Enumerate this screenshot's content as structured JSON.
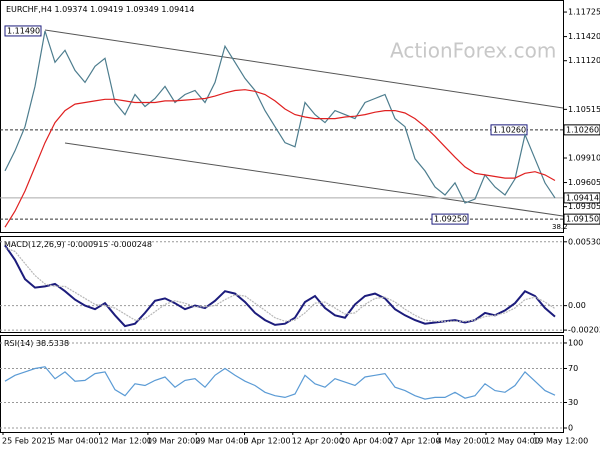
{
  "chart_data": [
    {
      "type": "line",
      "symbol": "EURCHF,H4",
      "last_bar": {
        "open": 1.09374,
        "high": 1.09419,
        "low": 1.09349
      },
      "watermark": "ActionForex.com",
      "ylim": [
        1.0899,
        1.1185
      ],
      "yticks": [
        {
          "value": 1.11725,
          "label": "1.11725"
        },
        {
          "value": 1.1142,
          "label": "1.11420"
        },
        {
          "value": 1.1112,
          "label": "1.11120"
        },
        {
          "value": 1.10515,
          "label": "1.10515"
        },
        {
          "value": 1.0991,
          "label": "1.09910"
        },
        {
          "value": 1.09605,
          "label": "1.09605"
        },
        {
          "value": 1.09305,
          "label": "1.09305"
        }
      ],
      "levels": [
        {
          "value": 1.1026,
          "label": "1.10260"
        },
        {
          "value": 1.0915,
          "label": "1.09150"
        }
      ],
      "annotations": [
        {
          "value": 1.1149,
          "label": "1.11490"
        },
        {
          "value": 1.1026,
          "label": "1.10260"
        },
        {
          "value": 1.0925,
          "label": "1.09250"
        }
      ],
      "fib_label": "38.2",
      "grid": false,
      "series": [
        {
          "color": "#4d7d8e",
          "values": [
            1.0975,
            1.1,
            1.103,
            1.108,
            1.1149,
            1.111,
            1.1125,
            1.11,
            1.1085,
            1.1105,
            1.1115,
            1.106,
            1.1045,
            1.107,
            1.1055,
            1.1065,
            1.108,
            1.106,
            1.107,
            1.1075,
            1.106,
            1.1085,
            1.113,
            1.111,
            1.109,
            1.1075,
            1.105,
            1.103,
            1.101,
            1.1005,
            1.106,
            1.1045,
            1.1035,
            1.105,
            1.1045,
            1.104,
            1.106,
            1.1065,
            1.107,
            1.104,
            1.103,
            1.099,
            1.0975,
            1.0955,
            1.0945,
            1.096,
            1.0935,
            1.094,
            1.097,
            1.0955,
            1.0945,
            1.0965,
            1.102,
            1.099,
            1.096,
            1.09414
          ]
        },
        {
          "color": "#e02020",
          "values": [
            1.0905,
            1.0925,
            1.095,
            1.098,
            1.101,
            1.1035,
            1.105,
            1.1058,
            1.106,
            1.1062,
            1.1064,
            1.1064,
            1.1062,
            1.106,
            1.106,
            1.106,
            1.1062,
            1.1062,
            1.1063,
            1.1064,
            1.1065,
            1.1068,
            1.1072,
            1.1075,
            1.1076,
            1.1074,
            1.107,
            1.1062,
            1.1052,
            1.1045,
            1.1042,
            1.104,
            1.104,
            1.104,
            1.1042,
            1.1043,
            1.1045,
            1.1048,
            1.105,
            1.105,
            1.1047,
            1.104,
            1.103,
            1.1018,
            1.1005,
            1.0992,
            1.098,
            1.0972,
            1.097,
            1.0968,
            1.0966,
            1.0966,
            1.0972,
            1.0974,
            1.097,
            1.0963
          ]
        }
      ]
    },
    {
      "type": "line",
      "title": "MACD(12,26,9)",
      "ylim": [
        -0.00219,
        0.0057
      ],
      "yticks": [
        0.005301,
        {
          "value": 0,
          "label": "0.00"
        },
        -0.002031
      ],
      "grid": true,
      "series": [
        {
          "color": "#1c1c7c",
          "values": [
            0.005,
            0.0038,
            0.0022,
            0.0015,
            0.0016,
            0.0018,
            0.0012,
            0.0005,
            0.0,
            -0.0003,
            0.0002,
            -0.0008,
            -0.0017,
            -0.0015,
            -0.0006,
            0.0004,
            0.0006,
            0.0002,
            -0.0003,
            0.0,
            -0.0002,
            0.0004,
            0.0012,
            0.001,
            0.0003,
            -0.0006,
            -0.0012,
            -0.0016,
            -0.0015,
            -0.001,
            0.0003,
            0.0008,
            -0.0002,
            -0.0008,
            -0.001,
            0.0001,
            0.0008,
            0.001,
            0.0006,
            -0.0003,
            -0.0008,
            -0.0012,
            -0.0015,
            -0.0014,
            -0.0013,
            -0.0012,
            -0.0014,
            -0.0012,
            -0.0006,
            -0.0008,
            -0.0004,
            0.0002,
            0.0012,
            0.0008,
            -0.0002,
            -0.000915
          ]
        },
        {
          "color": "#b8b8b8",
          "values": [
            0.0048,
            0.0045,
            0.0035,
            0.0025,
            0.0018,
            0.0016,
            0.0016,
            0.0011,
            0.0006,
            0.0001,
            0.0,
            -0.0002,
            -0.0007,
            -0.0012,
            -0.0011,
            -0.0005,
            0.0001,
            0.0004,
            0.0002,
            -0.0001,
            -0.0001,
            0.0,
            0.0005,
            0.0009,
            0.0008,
            0.0002,
            -0.0004,
            -0.001,
            -0.0013,
            -0.0012,
            -0.0006,
            0.0002,
            0.0003,
            -0.0002,
            -0.0007,
            -0.0006,
            0.0001,
            0.0006,
            0.0007,
            0.0003,
            -0.0003,
            -0.0008,
            -0.0012,
            -0.0013,
            -0.0013,
            -0.0013,
            -0.0013,
            -0.0012,
            -0.0009,
            -0.0008,
            -0.0006,
            -0.0002,
            0.0005,
            0.0007,
            0.0003,
            -0.000248
          ]
        }
      ]
    },
    {
      "type": "line",
      "title": "RSI(14)",
      "ylim": [
        -4.7,
        108.2
      ],
      "yticks": [
        100,
        70,
        30,
        0
      ],
      "grid": true,
      "xtick_labels": [
        "25 Feb 2021",
        "5 Mar 04:00",
        "12 Mar 12:00",
        "19 Mar 20:00",
        "29 Mar 04:00",
        "5 Apr 12:00",
        "12 Apr 20:00",
        "20 Apr 04:00",
        "27 Apr 12:00",
        "4 May 20:00",
        "12 May 04:00",
        "19 May 12:00"
      ],
      "series": [
        {
          "color": "#5b9bd5",
          "values": [
            55,
            62,
            66,
            70,
            72,
            58,
            66,
            55,
            56,
            64,
            66,
            45,
            38,
            52,
            50,
            56,
            60,
            48,
            56,
            58,
            48,
            62,
            70,
            62,
            55,
            50,
            42,
            38,
            36,
            40,
            62,
            52,
            48,
            58,
            54,
            50,
            60,
            62,
            64,
            48,
            44,
            38,
            34,
            36,
            36,
            42,
            35,
            38,
            52,
            44,
            42,
            50,
            66,
            55,
            44,
            38.5338
          ]
        }
      ]
    }
  ]
}
